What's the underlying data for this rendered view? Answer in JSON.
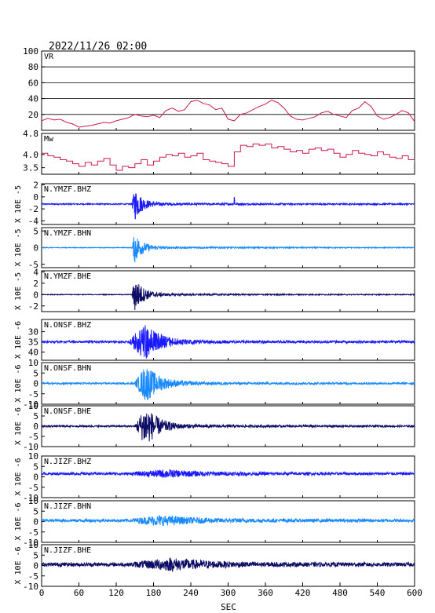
{
  "header": {
    "datetime": "2022/11/26 02:00"
  },
  "chart_data": {
    "type": "line",
    "x_axis": {
      "label": "SEC",
      "range": [
        0,
        600
      ],
      "ticks": [
        "0",
        "60",
        "120",
        "180",
        "240",
        "300",
        "360",
        "420",
        "480",
        "540",
        "600"
      ]
    },
    "panels": [
      {
        "id": "vr",
        "title": "VR",
        "ylabel": "",
        "ylim": [
          0,
          100
        ],
        "ticks": [
          "100",
          "80",
          "60",
          "40",
          "20"
        ],
        "grid": true,
        "color": "#cc1a4a",
        "series": {
          "x": [
            0,
            10,
            20,
            30,
            40,
            50,
            60,
            70,
            80,
            90,
            100,
            110,
            120,
            130,
            140,
            150,
            160,
            170,
            180,
            190,
            200,
            210,
            220,
            230,
            240,
            250,
            260,
            270,
            280,
            290,
            300,
            310,
            320,
            330,
            340,
            350,
            360,
            370,
            380,
            390,
            400,
            410,
            420,
            430,
            440,
            450,
            460,
            470,
            480,
            490,
            500,
            510,
            520,
            530,
            540,
            550,
            560,
            570,
            580,
            590,
            600
          ],
          "y": [
            12,
            15,
            13,
            14,
            10,
            8,
            4,
            5,
            6,
            8,
            10,
            9,
            12,
            14,
            16,
            20,
            18,
            17,
            19,
            16,
            25,
            28,
            24,
            26,
            36,
            38,
            34,
            32,
            26,
            28,
            14,
            12,
            20,
            22,
            26,
            30,
            33,
            38,
            35,
            28,
            18,
            14,
            13,
            15,
            17,
            22,
            24,
            20,
            18,
            16,
            25,
            28,
            36,
            30,
            18,
            14,
            16,
            20,
            25,
            22,
            11
          ]
        }
      },
      {
        "id": "mw",
        "title": "Mw",
        "ylabel": "",
        "ylim": [
          3.25,
          4.8
        ],
        "ticks": [
          "4.8",
          "4.0",
          "3.5"
        ],
        "grid": false,
        "color": "#cc1a4a",
        "series": {
          "x": [
            0,
            10,
            20,
            30,
            40,
            50,
            60,
            70,
            80,
            90,
            100,
            110,
            120,
            130,
            140,
            150,
            160,
            170,
            180,
            190,
            200,
            210,
            220,
            230,
            240,
            250,
            260,
            270,
            280,
            290,
            300,
            310,
            320,
            330,
            340,
            350,
            360,
            370,
            380,
            390,
            400,
            410,
            420,
            430,
            440,
            450,
            460,
            470,
            480,
            490,
            500,
            510,
            520,
            530,
            540,
            550,
            560,
            570,
            580,
            590,
            600
          ],
          "y": [
            4.05,
            3.95,
            3.9,
            3.8,
            3.75,
            3.65,
            3.55,
            3.7,
            3.6,
            3.75,
            3.85,
            3.6,
            3.4,
            3.55,
            3.5,
            3.65,
            3.8,
            3.6,
            3.75,
            3.9,
            4.0,
            3.95,
            4.05,
            3.9,
            3.95,
            4.05,
            3.8,
            3.75,
            3.7,
            3.65,
            3.55,
            4.1,
            4.35,
            4.3,
            4.4,
            4.35,
            4.4,
            4.25,
            4.3,
            4.2,
            4.1,
            4.15,
            4.05,
            4.2,
            4.25,
            4.15,
            4.2,
            4.05,
            3.9,
            4.0,
            4.15,
            4.05,
            4.0,
            3.95,
            4.1,
            4.0,
            3.9,
            3.85,
            3.95,
            3.8,
            3.7
          ]
        }
      },
      {
        "id": "ymz_bhz",
        "title": "N.YMZF.BHZ",
        "ylabel": "X 10E -5",
        "ylim": [
          -4.6,
          2.2
        ],
        "ticks": [
          "2",
          "0",
          "-2",
          "-4"
        ],
        "color": "#1a1aff",
        "wave": {
          "base": -1.2,
          "noise": 0.1,
          "onset": 145,
          "peak": 150,
          "amp": 2.6,
          "decay": 12,
          "coda": 0.05,
          "spike": {
            "x": 310,
            "amp": 1.1
          }
        }
      },
      {
        "id": "ymz_bhn",
        "title": "N.YMZF.BHN",
        "ylabel": "X 10E -5",
        "ylim": [
          -6.0,
          6.0
        ],
        "ticks": [
          "5",
          "0",
          "-5"
        ],
        "color": "#1a8aff",
        "wave": {
          "base": 0.0,
          "noise": 0.1,
          "onset": 145,
          "peak": 150,
          "amp": 4.4,
          "decay": 12,
          "coda": 0.06
        }
      },
      {
        "id": "ymz_bhe",
        "title": "N.YMZF.BHE",
        "ylabel": "X 10E -5",
        "ylim": [
          -3.0,
          4.2
        ],
        "ticks": [
          "4",
          "2",
          "0",
          "-2"
        ],
        "color": "#0d0d66",
        "wave": {
          "base": 0.0,
          "noise": 0.06,
          "onset": 145,
          "peak": 150,
          "amp": 2.9,
          "decay": 14,
          "coda": 0.05
        }
      },
      {
        "id": "onsf_bhz",
        "title": "N.ONSF.BHZ",
        "ylabel": "X 10E -6",
        "ylim": [
          24,
          44
        ],
        "inverted": true,
        "ticks": [
          "30",
          "35",
          "40"
        ],
        "color": "#1a1aff",
        "wave": {
          "base": 35,
          "noise": 0.5,
          "onset": 140,
          "peak": 168,
          "amp": 8.5,
          "decay": 22,
          "coda": 0.06
        }
      },
      {
        "id": "onsf_bhn",
        "title": "N.ONSF.BHN",
        "ylabel": "X 10E -6",
        "ylim": [
          -10,
          10
        ],
        "ticks": [
          "10",
          "5",
          "0",
          "-5",
          "-10"
        ],
        "color": "#1a8aff",
        "wave": {
          "base": 0.0,
          "noise": 0.4,
          "onset": 150,
          "peak": 168,
          "amp": 8.5,
          "decay": 22,
          "coda": 0.05
        }
      },
      {
        "id": "onsf_bhe",
        "title": "N.ONSF.BHE",
        "ylabel": "X 10E -6",
        "ylim": [
          -10,
          10
        ],
        "ticks": [
          "10",
          "5",
          "0",
          "-5",
          "-10"
        ],
        "color": "#0d0d66",
        "wave": {
          "base": 0.0,
          "noise": 0.4,
          "onset": 150,
          "peak": 168,
          "amp": 9.5,
          "decay": 20,
          "coda": 0.05
        }
      },
      {
        "id": "jiz_bhz",
        "title": "N.JIZF.BHZ",
        "ylabel": "X 10E -6",
        "ylim": [
          -10,
          10
        ],
        "ticks": [
          "10",
          "5",
          "0",
          "-5",
          "-10"
        ],
        "color": "#1a1aff",
        "wave": {
          "base": 1.5,
          "noise": 0.6,
          "onset": 145,
          "peak": 200,
          "amp": 1.4,
          "decay": 60,
          "coda": 0.15
        }
      },
      {
        "id": "jiz_bhn",
        "title": "N.JIZF.BHN",
        "ylabel": "X 10E -6",
        "ylim": [
          -10,
          10
        ],
        "ticks": [
          "10",
          "5",
          "0",
          "-5",
          "-10"
        ],
        "color": "#1a8aff",
        "wave": {
          "base": 0.5,
          "noise": 0.7,
          "onset": 145,
          "peak": 190,
          "amp": 1.8,
          "decay": 60,
          "coda": 0.15
        }
      },
      {
        "id": "jiz_bhe",
        "title": "N.JIZF.BHE",
        "ylabel": "X 10E -6",
        "ylim": [
          -10,
          10
        ],
        "ticks": [
          "10",
          "5",
          "0",
          "-5",
          "-10"
        ],
        "color": "#0d0d66",
        "wave": {
          "base": 0.5,
          "noise": 0.9,
          "onset": 145,
          "peak": 210,
          "amp": 2.2,
          "decay": 60,
          "coda": 0.15
        }
      }
    ]
  }
}
